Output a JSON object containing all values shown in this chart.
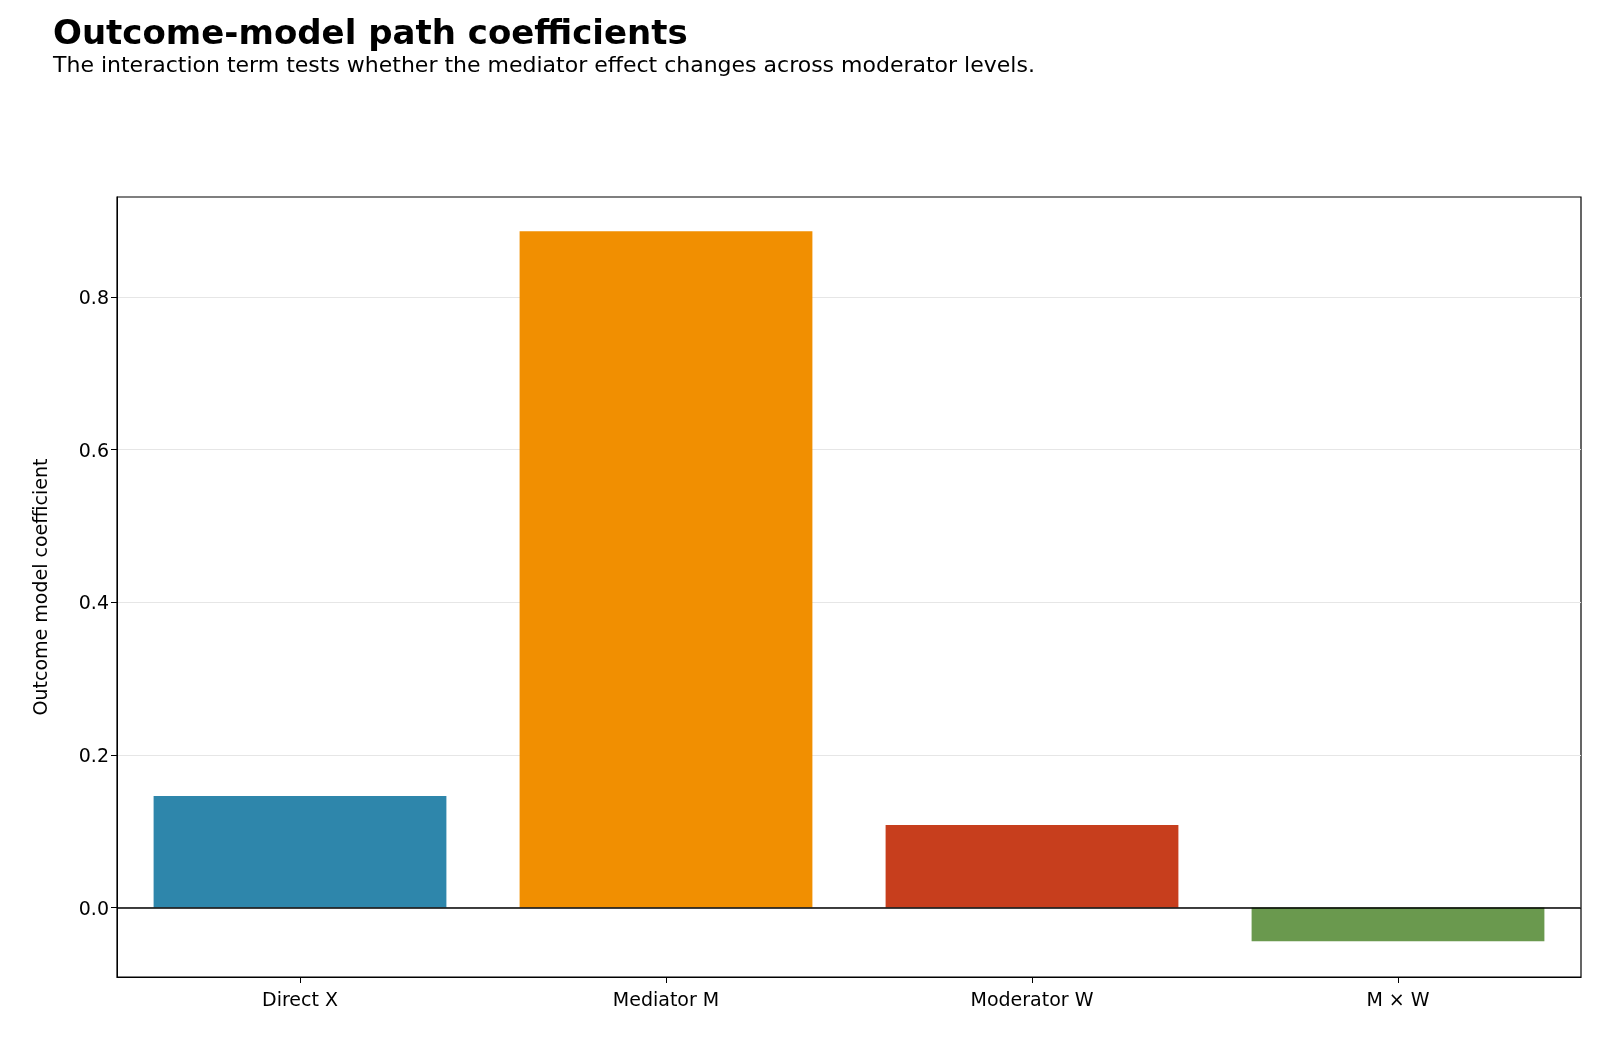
{
  "chart_data": {
    "type": "bar",
    "title": "Outcome-model path coefficients",
    "subtitle": "The interaction term tests whether the mediator effect changes across moderator levels.",
    "ylabel": "Outcome model coefficient",
    "categories": [
      "Direct X",
      "Mediator M",
      "Moderator W",
      "M × W"
    ],
    "values": [
      0.146,
      0.886,
      0.108,
      -0.044
    ],
    "colors": [
      "#2e86ab",
      "#f18f01",
      "#c73e1d",
      "#6a994e"
    ],
    "ylim": [
      -0.091,
      0.931
    ],
    "yticks": [
      {
        "value": 0,
        "label": "0.0"
      },
      {
        "value": 0.2,
        "label": "0.2"
      },
      {
        "value": 0.4,
        "label": "0.4"
      },
      {
        "value": 0.6,
        "label": "0.6"
      },
      {
        "value": 0.8,
        "label": "0.8"
      }
    ],
    "ref_lines": [
      {
        "axis": "y",
        "value": 0,
        "color": "#000000"
      }
    ],
    "grid": "y"
  }
}
